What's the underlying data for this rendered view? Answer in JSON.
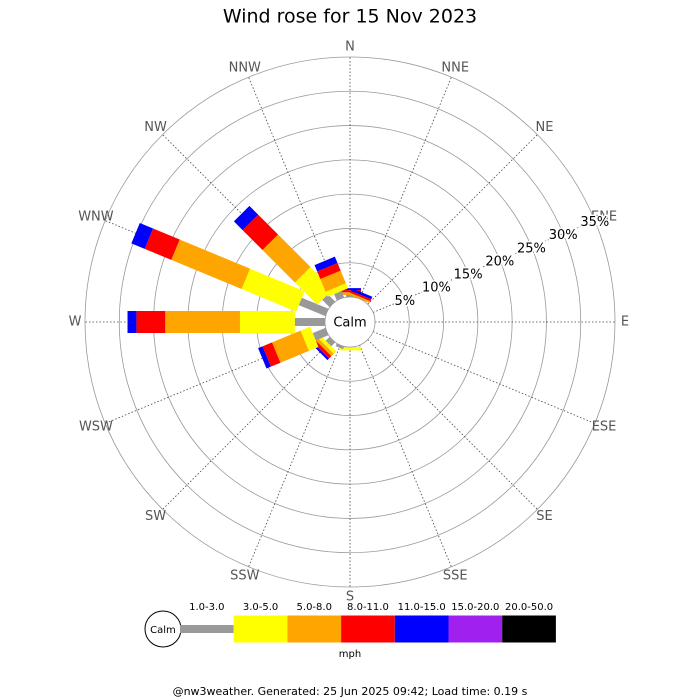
{
  "chart_data": {
    "type": "windrose",
    "title": "Wind rose for 15 Nov 2023",
    "categories": [
      "N",
      "NNE",
      "NE",
      "ENE",
      "E",
      "ESE",
      "SE",
      "SSE",
      "S",
      "SSW",
      "SW",
      "WSW",
      "W",
      "WNW",
      "NW",
      "NNW"
    ],
    "series": [
      {
        "name": "1.0-3.0",
        "color": "#999999",
        "values": [
          0.3,
          0,
          0,
          0,
          0,
          0,
          0,
          0,
          0,
          0.4,
          0.8,
          2.0,
          4.4,
          4.2,
          1.5,
          1.0
        ]
      },
      {
        "name": "3.0-5.0",
        "color": "#ffff00",
        "values": [
          0,
          0,
          0,
          0,
          0,
          0,
          0,
          0,
          0.5,
          0,
          0.5,
          1.5,
          8.0,
          8.6,
          4.6,
          0.8
        ]
      },
      {
        "name": "5.0-8.0",
        "color": "#ffa500",
        "values": [
          0.4,
          0.3,
          0,
          0,
          0,
          0,
          0,
          0,
          0,
          0,
          0.5,
          4.5,
          10.9,
          11.1,
          6.7,
          2.0
        ]
      },
      {
        "name": "8.0-11.0",
        "color": "#ff0000",
        "values": [
          0.3,
          0.3,
          0,
          0,
          0,
          0,
          0,
          0,
          0,
          0,
          0.5,
          1.5,
          4.2,
          4.2,
          4.1,
          1.2
        ]
      },
      {
        "name": "11.0-15.0",
        "color": "#0000ff",
        "values": [
          0.3,
          0.4,
          0,
          0,
          0,
          0,
          0,
          0,
          0,
          0,
          0.3,
          0.7,
          1.3,
          2.1,
          1.8,
          1.0
        ]
      },
      {
        "name": "15.0-20.0",
        "color": "#a020f0",
        "values": [
          0,
          0,
          0,
          0,
          0,
          0,
          0,
          0,
          0,
          0,
          0,
          0,
          0,
          0,
          0,
          0
        ]
      },
      {
        "name": "20.0-50.0",
        "color": "#000000",
        "values": [
          0,
          0,
          0,
          0,
          0,
          0,
          0,
          0,
          0,
          0,
          0,
          0,
          0,
          0,
          0,
          0
        ]
      }
    ],
    "rlim": [
      0,
      35
    ],
    "rticks": [
      {
        "value": 5,
        "label": "5%"
      },
      {
        "value": 10,
        "label": "10%"
      },
      {
        "value": 15,
        "label": "15%"
      },
      {
        "value": 20,
        "label": "20%"
      },
      {
        "value": 25,
        "label": "25%"
      },
      {
        "value": 30,
        "label": "30%"
      },
      {
        "value": 35,
        "label": "35%"
      }
    ],
    "calm_label": "Calm",
    "units": "mph",
    "footer": "@nw3weather. Generated: 25 Jun 2025 09:42; Load time: 0.19 s"
  }
}
